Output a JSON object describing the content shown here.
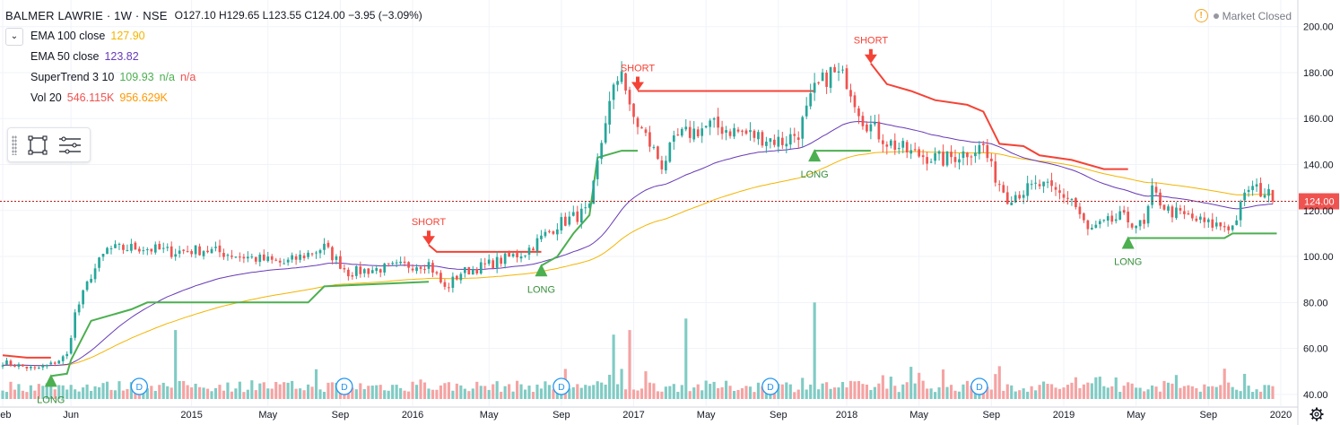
{
  "header": {
    "symbol": "BALMER LAWRIE · 1W · NSE",
    "ohlc": "O127.10  H129.65  L123.55  C124.00  −3.95 (−3.09%)",
    "market_status": "Market Closed"
  },
  "indicators": [
    {
      "name": "EMA 100 close",
      "value": "127.90",
      "value2": "",
      "value3": "",
      "color": "#f4b400"
    },
    {
      "name": "EMA 50 close",
      "value": "123.82",
      "value2": "",
      "value3": "",
      "color": "#673ab7"
    },
    {
      "name": "SuperTrend 3 10",
      "value": "109.93",
      "value2": "n/a",
      "value3": "n/a",
      "color": "#4caf50",
      "color3": "#ef5350"
    },
    {
      "name": "Vol 20",
      "value": "546.115K",
      "value2": "956.629K",
      "value3": "",
      "color": "#ef5350",
      "color2": "#ff9800"
    }
  ],
  "toolbox": {
    "icons": [
      "selection-rect-icon",
      "list-settings-icon"
    ]
  },
  "colors": {
    "up": "#26a69a",
    "down": "#ef5350",
    "ema100": "#f4b400",
    "ema50": "#673ab7",
    "st_up": "#4caf50",
    "st_down": "#f44336",
    "vol_up": "#80cbc4",
    "vol_down": "#f5a3a3",
    "price_line": "#b71c1c",
    "grid": "#f0f3fa",
    "text": "#131722"
  },
  "chart_data": {
    "type": "candlestick",
    "title": "BALMER LAWRIE · 1W · NSE",
    "xlabel": "",
    "ylabel": "",
    "ylim": [
      38,
      203
    ],
    "y_ticks": [
      40,
      60,
      80,
      100,
      120,
      140,
      160,
      180,
      200
    ],
    "y_tick_labels": [
      "40.00",
      "60.00",
      "80.00",
      "100.00",
      "120.00",
      "140.00",
      "160.00",
      "180.00",
      "200.00"
    ],
    "x_tick_labels": [
      {
        "label": "Feb",
        "index": 0
      },
      {
        "label": "Jun",
        "index": 17
      },
      {
        "label": "2015",
        "index": 47
      },
      {
        "label": "May",
        "index": 66
      },
      {
        "label": "Sep",
        "index": 84
      },
      {
        "label": "2016",
        "index": 102
      },
      {
        "label": "May",
        "index": 121
      },
      {
        "label": "Sep",
        "index": 139
      },
      {
        "label": "2017",
        "index": 157
      },
      {
        "label": "May",
        "index": 175
      },
      {
        "label": "Sep",
        "index": 193
      },
      {
        "label": "2018",
        "index": 210
      },
      {
        "label": "May",
        "index": 228
      },
      {
        "label": "Sep",
        "index": 246
      },
      {
        "label": "2019",
        "index": 264
      },
      {
        "label": "May",
        "index": 282
      },
      {
        "label": "Sep",
        "index": 300
      },
      {
        "label": "2020",
        "index": 318
      }
    ],
    "n_bars": 317,
    "close_anchors": [
      [
        0,
        54
      ],
      [
        8,
        51
      ],
      [
        12,
        53
      ],
      [
        16,
        57
      ],
      [
        18,
        75
      ],
      [
        22,
        92
      ],
      [
        26,
        103
      ],
      [
        34,
        104
      ],
      [
        42,
        102
      ],
      [
        50,
        103
      ],
      [
        60,
        100
      ],
      [
        70,
        97
      ],
      [
        80,
        104
      ],
      [
        86,
        93
      ],
      [
        100,
        96
      ],
      [
        106,
        97
      ],
      [
        110,
        86
      ],
      [
        114,
        93
      ],
      [
        120,
        96
      ],
      [
        130,
        102
      ],
      [
        138,
        114
      ],
      [
        146,
        120
      ],
      [
        150,
        160
      ],
      [
        154,
        183
      ],
      [
        156,
        163
      ],
      [
        160,
        152
      ],
      [
        164,
        140
      ],
      [
        168,
        152
      ],
      [
        176,
        157
      ],
      [
        186,
        153
      ],
      [
        194,
        150
      ],
      [
        198,
        154
      ],
      [
        202,
        172
      ],
      [
        206,
        180
      ],
      [
        210,
        177
      ],
      [
        214,
        160
      ],
      [
        220,
        150
      ],
      [
        226,
        145
      ],
      [
        234,
        142
      ],
      [
        244,
        148
      ],
      [
        246,
        138
      ],
      [
        250,
        126
      ],
      [
        258,
        131
      ],
      [
        266,
        125
      ],
      [
        270,
        111
      ],
      [
        278,
        117
      ],
      [
        284,
        113
      ],
      [
        286,
        128
      ],
      [
        290,
        120
      ],
      [
        300,
        114
      ],
      [
        306,
        113
      ],
      [
        310,
        130
      ],
      [
        314,
        128
      ],
      [
        317,
        124
      ]
    ],
    "volume_spikes": [
      [
        43,
        68
      ],
      [
        152,
        66
      ],
      [
        156,
        68
      ],
      [
        170,
        73
      ],
      [
        202,
        80
      ]
    ],
    "ema100_last": 127.9,
    "ema50_last": 123.82,
    "supertrend_segments": [
      {
        "dir": "down",
        "points": [
          [
            0,
            57
          ],
          [
            6,
            56
          ],
          [
            12,
            56
          ]
        ]
      },
      {
        "dir": "up",
        "points": [
          [
            12,
            48
          ],
          [
            16,
            49
          ],
          [
            17,
            55
          ],
          [
            22,
            72
          ],
          [
            26,
            74
          ],
          [
            32,
            77
          ],
          [
            36,
            80
          ],
          [
            76,
            80
          ],
          [
            80,
            87
          ],
          [
            106,
            89
          ]
        ]
      },
      {
        "dir": "down",
        "points": [
          [
            106,
            105
          ],
          [
            108,
            102
          ],
          [
            134,
            102
          ]
        ]
      },
      {
        "dir": "up",
        "points": [
          [
            134,
            96
          ],
          [
            138,
            100
          ],
          [
            142,
            110
          ],
          [
            146,
            118
          ],
          [
            148,
            143
          ],
          [
            154,
            146
          ],
          [
            158,
            146
          ]
        ]
      },
      {
        "dir": "down",
        "points": [
          [
            158,
            172
          ],
          [
            202,
            172
          ]
        ]
      },
      {
        "dir": "up",
        "points": [
          [
            202,
            146
          ],
          [
            216,
            146
          ]
        ]
      },
      {
        "dir": "down",
        "points": [
          [
            216,
            184
          ],
          [
            220,
            175
          ],
          [
            226,
            172
          ],
          [
            232,
            168
          ],
          [
            240,
            166
          ],
          [
            244,
            163
          ],
          [
            248,
            149
          ],
          [
            254,
            148
          ],
          [
            258,
            144
          ],
          [
            266,
            142
          ],
          [
            274,
            138
          ],
          [
            280,
            138
          ]
        ]
      },
      {
        "dir": "up",
        "points": [
          [
            280,
            108
          ],
          [
            304,
            108
          ],
          [
            306,
            110
          ],
          [
            317,
            110
          ]
        ]
      }
    ],
    "signals": [
      {
        "type": "LONG",
        "label": "LONG",
        "index": 12,
        "position": "below"
      },
      {
        "type": "SHORT",
        "label": "SHORT",
        "index": 106,
        "position": "above"
      },
      {
        "type": "LONG",
        "label": "LONG",
        "index": 134,
        "position": "below"
      },
      {
        "type": "SHORT",
        "label": "SHORT",
        "index": 158,
        "position": "above"
      },
      {
        "type": "LONG",
        "label": "LONG",
        "index": 202,
        "position": "below"
      },
      {
        "type": "SHORT",
        "label": "SHORT",
        "index": 216,
        "position": "above"
      },
      {
        "type": "LONG",
        "label": "LONG",
        "index": 280,
        "position": "below"
      }
    ],
    "dividends": [
      {
        "label": "D",
        "index": 34
      },
      {
        "label": "D",
        "index": 85
      },
      {
        "label": "D",
        "index": 139
      },
      {
        "label": "D",
        "index": 191
      },
      {
        "label": "D",
        "index": 243
      }
    ],
    "last_price_label": "124.00",
    "last_price": 124.0
  }
}
